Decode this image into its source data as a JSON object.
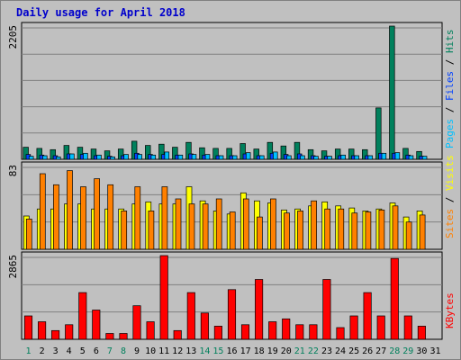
{
  "colors": {
    "background": "#C0C0C0",
    "title": "#0000CC",
    "hits": "#00805C",
    "files": "#0040FF",
    "pages": "#00C0FF",
    "visits": "#FFFF00",
    "sites": "#FF8000",
    "kbytes": "#FF0000",
    "weekend": "#00805C",
    "weekday": "#000000",
    "slash": "#000000"
  },
  "chart_data": {
    "title": "Daily usage for April 2018",
    "type": "bar",
    "categories": [
      "1",
      "2",
      "3",
      "4",
      "5",
      "6",
      "7",
      "8",
      "9",
      "10",
      "11",
      "12",
      "13",
      "14",
      "15",
      "16",
      "17",
      "18",
      "19",
      "20",
      "21",
      "22",
      "23",
      "24",
      "25",
      "26",
      "27",
      "28",
      "29",
      "30",
      "31"
    ],
    "weekend_days": [
      "1",
      "7",
      "8",
      "14",
      "15",
      "21",
      "22",
      "28",
      "29"
    ],
    "panels": [
      {
        "name": "hits-files-pages",
        "ymax_label": "2205",
        "ylim": [
          0,
          2205
        ],
        "legend": [
          "Pages",
          "/",
          "Files",
          "/",
          "Hits"
        ],
        "series": [
          {
            "name": "Hits",
            "color_key": "hits",
            "values": [
              200,
              180,
              160,
              230,
              200,
              170,
              140,
              170,
              300,
              230,
              250,
              200,
              280,
              190,
              180,
              180,
              260,
              170,
              280,
              220,
              280,
              160,
              140,
              170,
              170,
              160,
              850,
              2205,
              180,
              130,
              0
            ]
          },
          {
            "name": "Files",
            "color_key": "files",
            "values": [
              80,
              70,
              60,
              90,
              80,
              60,
              50,
              60,
              100,
              80,
              80,
              70,
              90,
              70,
              60,
              60,
              90,
              60,
              100,
              80,
              90,
              60,
              50,
              60,
              60,
              60,
              100,
              100,
              70,
              50,
              0
            ]
          },
          {
            "name": "Pages",
            "color_key": "pages",
            "values": [
              50,
              60,
              40,
              90,
              100,
              70,
              40,
              80,
              80,
              70,
              120,
              70,
              80,
              80,
              60,
              60,
              110,
              60,
              120,
              60,
              60,
              50,
              50,
              70,
              60,
              60,
              100,
              110,
              60,
              50,
              0
            ]
          }
        ]
      },
      {
        "name": "visits-sites",
        "ymax_label": "83",
        "ylim": [
          0,
          83
        ],
        "legend": [
          "Sites",
          "/",
          "Visits"
        ],
        "series": [
          {
            "name": "Visits",
            "color_key": "visits",
            "values": [
              33,
              40,
              40,
              45,
              45,
              40,
              40,
              40,
              45,
              47,
              45,
              45,
              62,
              48,
              38,
              35,
              56,
              48,
              46,
              39,
              40,
              43,
              47,
              43,
              41,
              38,
              40,
              46,
              32,
              38,
              0
            ]
          },
          {
            "name": "Sites",
            "color_key": "sites",
            "values": [
              30,
              75,
              64,
              78,
              62,
              70,
              64,
              38,
              62,
              38,
              62,
              50,
              45,
              45,
              50,
              37,
              50,
              32,
              50,
              36,
              38,
              48,
              40,
              40,
              36,
              37,
              39,
              43,
              27,
              34,
              0
            ]
          }
        ]
      },
      {
        "name": "kbytes",
        "ymax_label": "2865",
        "ylim": [
          0,
          2865
        ],
        "legend": [
          "KBytes"
        ],
        "series": [
          {
            "name": "KBytes",
            "color_key": "kbytes",
            "values": [
              800,
              600,
              300,
              500,
              1600,
              1000,
              200,
              200,
              1150,
              600,
              2865,
              300,
              1600,
              900,
              450,
              1700,
              500,
              2050,
              600,
              700,
              500,
              500,
              2050,
              400,
              800,
              1600,
              800,
              2765,
              800,
              450,
              0
            ]
          }
        ]
      }
    ]
  }
}
